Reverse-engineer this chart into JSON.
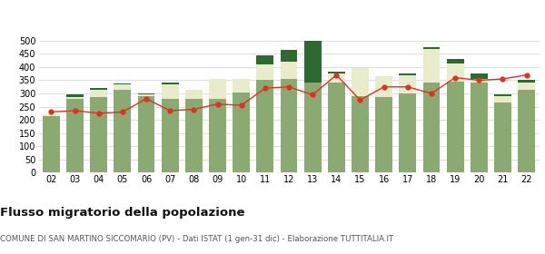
{
  "years": [
    "02",
    "03",
    "04",
    "05",
    "06",
    "07",
    "08",
    "09",
    "10",
    "11",
    "12",
    "13",
    "14",
    "15",
    "16",
    "17",
    "18",
    "19",
    "20",
    "21",
    "22"
  ],
  "iscritti_altri_comuni": [
    215,
    280,
    285,
    315,
    290,
    280,
    280,
    280,
    305,
    350,
    355,
    340,
    340,
    290,
    285,
    300,
    340,
    345,
    340,
    265,
    315
  ],
  "iscritti_estero": [
    5,
    8,
    30,
    18,
    5,
    55,
    35,
    75,
    50,
    60,
    65,
    0,
    35,
    105,
    80,
    70,
    130,
    70,
    15,
    25,
    25
  ],
  "iscritti_altri": [
    0,
    10,
    5,
    5,
    5,
    5,
    0,
    0,
    0,
    35,
    45,
    160,
    8,
    0,
    0,
    5,
    5,
    15,
    20,
    5,
    10
  ],
  "cancellati": [
    230,
    235,
    225,
    230,
    280,
    235,
    240,
    260,
    255,
    320,
    325,
    295,
    370,
    275,
    325,
    325,
    300,
    360,
    350,
    355,
    370
  ],
  "color_altri_comuni": "#8aaa72",
  "color_estero": "#e8eccb",
  "color_altri": "#2d6a2d",
  "color_cancellati": "#e03020",
  "ylim": [
    0,
    500
  ],
  "yticks": [
    0,
    50,
    100,
    150,
    200,
    250,
    300,
    350,
    400,
    450,
    500
  ],
  "title": "Flusso migratorio della popolazione",
  "subtitle": "COMUNE DI SAN MARTINO SICCOMARIO (PV) - Dati ISTAT (1 gen-31 dic) - Elaborazione TUTTITALIA.IT",
  "bg_color": "#ffffff",
  "grid_color": "#d8d8d8"
}
